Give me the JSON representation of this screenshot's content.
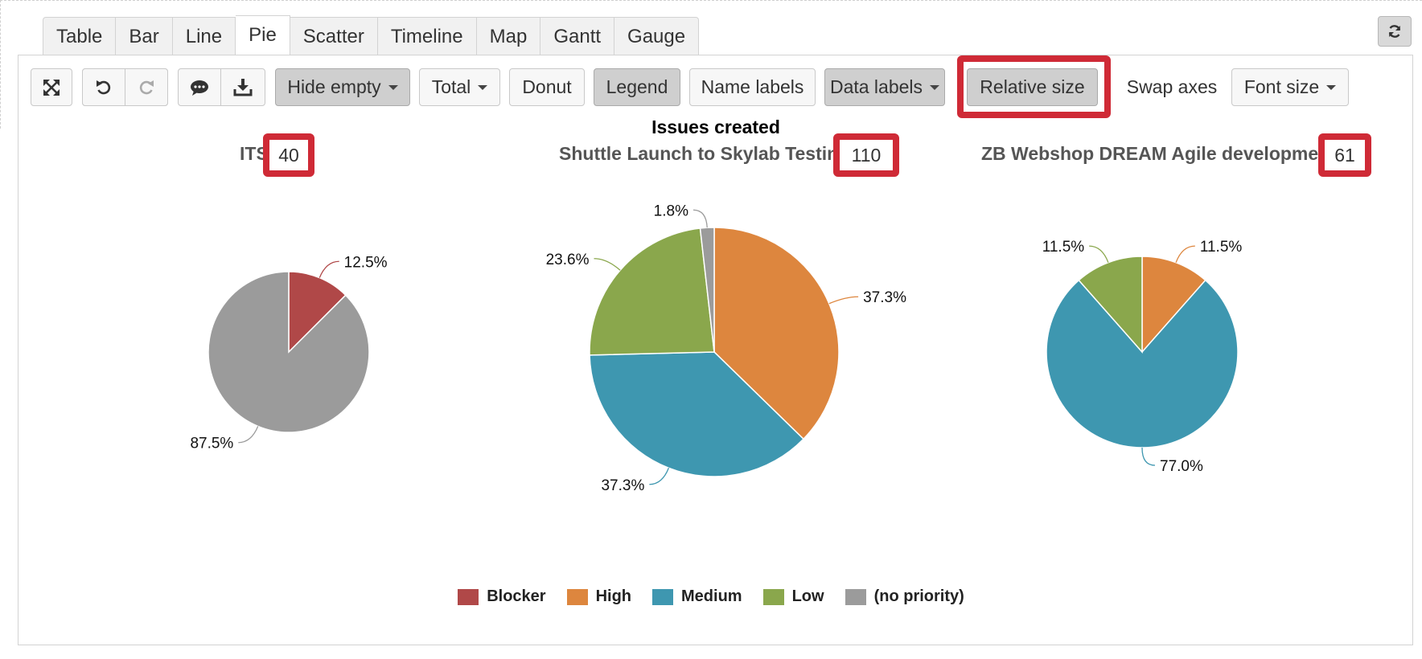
{
  "tabs": [
    {
      "label": "Table",
      "active": false
    },
    {
      "label": "Bar",
      "active": false
    },
    {
      "label": "Line",
      "active": false
    },
    {
      "label": "Pie",
      "active": true
    },
    {
      "label": "Scatter",
      "active": false
    },
    {
      "label": "Timeline",
      "active": false
    },
    {
      "label": "Map",
      "active": false
    },
    {
      "label": "Gantt",
      "active": false
    },
    {
      "label": "Gauge",
      "active": false
    }
  ],
  "toolbar": {
    "hide_empty": "Hide empty",
    "total": "Total",
    "donut": "Donut",
    "legend": "Legend",
    "name_labels": "Name labels",
    "data_labels": "Data labels",
    "relative_size": "Relative size",
    "swap_axes": "Swap axes",
    "font_size": "Font size"
  },
  "icons": {
    "fullscreen": "fullscreen-icon",
    "undo": "undo-icon",
    "redo": "redo-icon",
    "comment": "comment-icon",
    "download": "download-icon",
    "refresh": "refresh-icon"
  },
  "chart_data": {
    "type": "pie",
    "title": "Issues created",
    "categories": [
      "Blocker",
      "High",
      "Medium",
      "Low",
      "(no priority)"
    ],
    "colors": [
      "#b04848",
      "#dd863e",
      "#3e97b0",
      "#8aa74c",
      "#9b9b9b"
    ],
    "pies": [
      {
        "name": "ITS",
        "total": "40",
        "values": [
          12.5,
          0,
          0,
          0,
          87.5
        ],
        "labels": [
          "12.5%",
          "",
          "",
          "",
          "87.5%"
        ]
      },
      {
        "name": "Shuttle Launch to Skylab Testing",
        "total": "110",
        "values": [
          0,
          37.3,
          37.3,
          23.6,
          1.8
        ],
        "labels": [
          "",
          "37.3%",
          "37.3%",
          "23.6%",
          "1.8%"
        ]
      },
      {
        "name": "ZB Webshop DREAM Agile developmen",
        "total": "61",
        "values": [
          0,
          11.5,
          77.0,
          11.5,
          0
        ],
        "labels": [
          "",
          "11.5%",
          "77.0%",
          "11.5%",
          ""
        ]
      }
    ],
    "legend_position": "bottom"
  }
}
